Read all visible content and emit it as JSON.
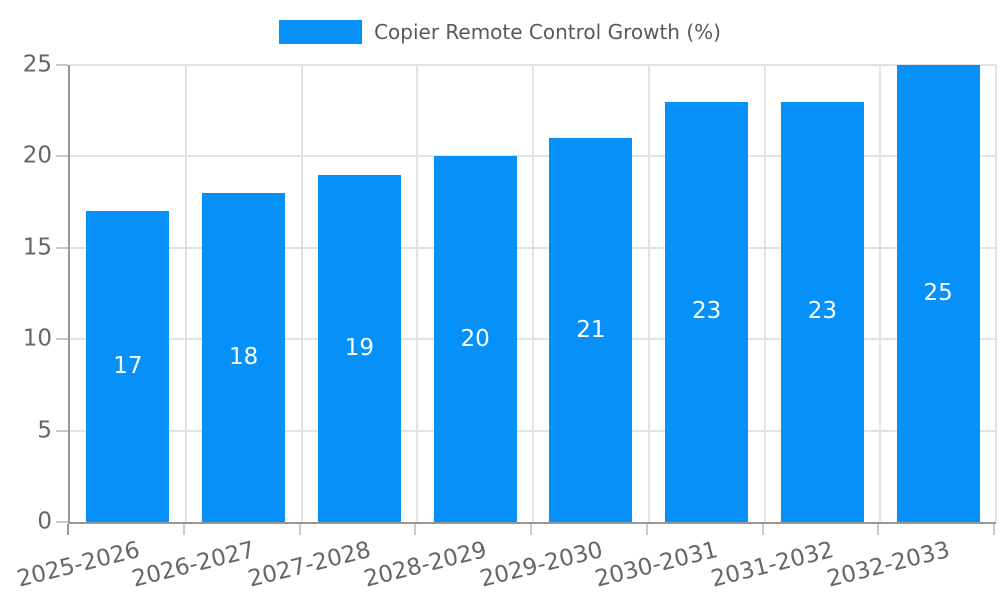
{
  "legend": {
    "label": "Copier Remote Control Growth (%)"
  },
  "colors": {
    "bar": "#0590FA",
    "grid": "#e2e2e2",
    "axis": "#969696",
    "tick": "#c9c9c9",
    "tick_label": "#666666",
    "bar_label": "#ffffff",
    "legend_text": "#595959",
    "background": "#ffffff"
  },
  "chart_data": {
    "type": "bar",
    "title": "",
    "series_name": "Copier Remote Control Growth (%)",
    "categories": [
      "2025-2026",
      "2026-2027",
      "2027-2028",
      "2028-2029",
      "2029-2030",
      "2030-2031",
      "2031-2032",
      "2032-2033"
    ],
    "values": [
      17,
      18,
      19,
      20,
      21,
      23,
      23,
      25
    ],
    "xlabel": "",
    "ylabel": "",
    "ylim": [
      0,
      25
    ],
    "yticks": [
      0,
      5,
      10,
      15,
      20,
      25
    ],
    "grid": true,
    "legend_position": "top",
    "x_label_rotation_deg": -14,
    "bar_labels_visible": true,
    "bar_label_position": "center"
  }
}
